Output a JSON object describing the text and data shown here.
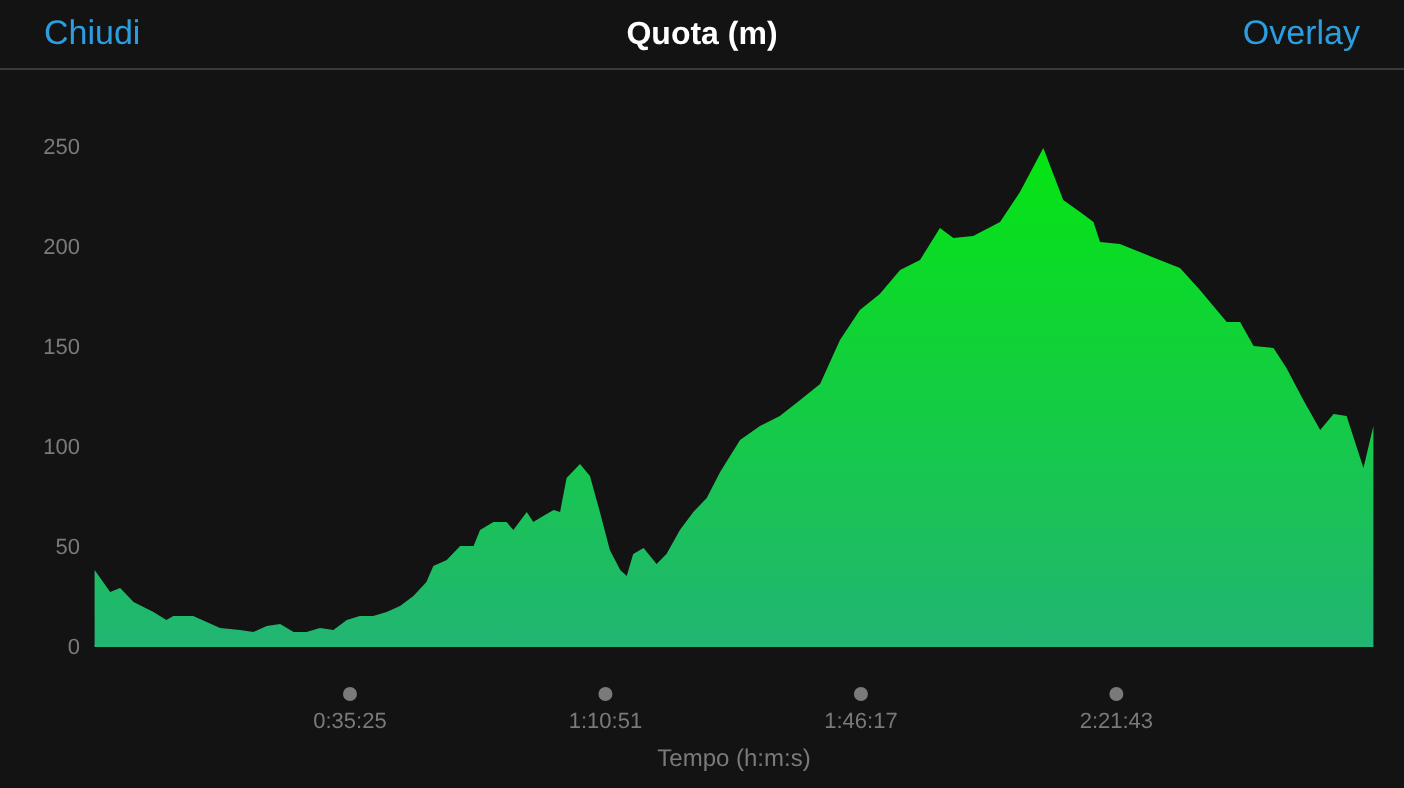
{
  "chart_data": {
    "type": "area",
    "title": "Quota (m)",
    "xlabel": "Tempo (h:m:s)",
    "annotations": [
      "Chiudi",
      "Overlay"
    ],
    "xlim": [
      0,
      2.956
    ],
    "ylim": [
      0,
      250
    ],
    "xticks": [
      {
        "value": 0.5903,
        "label": "0:35:25"
      },
      {
        "value": 1.1808,
        "label": "1:10:51"
      },
      {
        "value": 1.7714,
        "label": "1:46:17"
      },
      {
        "value": 2.3619,
        "label": "2:21:43"
      }
    ],
    "yticks": [
      0,
      50,
      100,
      150,
      200,
      250
    ],
    "grid": false,
    "series": [
      {
        "color": "#22b573",
        "x": [
          0,
          0.036,
          0.059,
          0.09,
          0.136,
          0.166,
          0.182,
          0.228,
          0.259,
          0.29,
          0.336,
          0.367,
          0.398,
          0.429,
          0.46,
          0.49,
          0.521,
          0.552,
          0.583,
          0.613,
          0.644,
          0.675,
          0.706,
          0.737,
          0.767,
          0.783,
          0.814,
          0.845,
          0.876,
          0.891,
          0.922,
          0.952,
          0.968,
          0.999,
          1.014,
          1.037,
          1.061,
          1.076,
          1.091,
          1.122,
          1.145,
          1.168,
          1.191,
          1.215,
          1.23,
          1.245,
          1.269,
          1.299,
          1.322,
          1.353,
          1.384,
          1.415,
          1.446,
          1.492,
          1.538,
          1.584,
          1.631,
          1.677,
          1.723,
          1.769,
          1.815,
          1.862,
          1.908,
          1.954,
          1.985,
          2.031,
          2.093,
          2.139,
          2.193,
          2.239,
          2.278,
          2.309,
          2.324,
          2.37,
          2.416,
          2.462,
          2.509,
          2.555,
          2.617,
          2.648,
          2.679,
          2.725,
          2.755,
          2.794,
          2.833,
          2.864,
          2.894,
          2.933,
          2.956
        ],
        "values": [
          38,
          27,
          29,
          22,
          17,
          13,
          15,
          15,
          12,
          9,
          8,
          7,
          10,
          11,
          7,
          7,
          9,
          8,
          13,
          15,
          15,
          17,
          20,
          25,
          32,
          40,
          43,
          50,
          50,
          58,
          62,
          62,
          58,
          67,
          62,
          65,
          68,
          67,
          84,
          91,
          85,
          67,
          48,
          38,
          35,
          46,
          49,
          41,
          46,
          58,
          67,
          74,
          87,
          103,
          110,
          115,
          123,
          131,
          153,
          168,
          176,
          188,
          193,
          209,
          204,
          205,
          212,
          227,
          249,
          223,
          217,
          212,
          202,
          201,
          197,
          193,
          189,
          178,
          162,
          162,
          150,
          149,
          139,
          123,
          108,
          116,
          115,
          89,
          110
        ]
      }
    ]
  }
}
